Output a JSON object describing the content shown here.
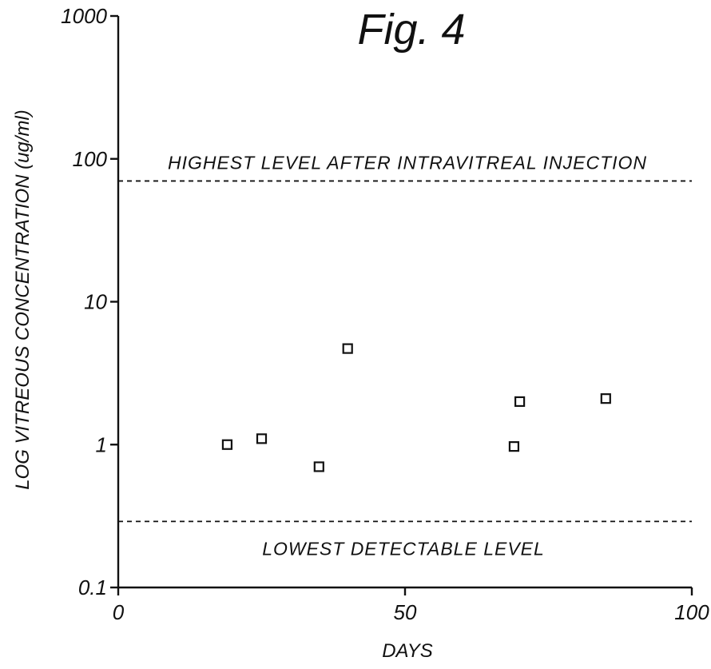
{
  "figure": {
    "title": "Fig. 4"
  },
  "chart_data": {
    "type": "scatter",
    "title": "Fig. 4",
    "xlabel": "DAYS",
    "ylabel": "LOG VITREOUS CONCENTRATION (ug/ml)",
    "xlim": [
      0,
      100
    ],
    "ylim": [
      0.1,
      1000
    ],
    "yscale": "log",
    "xticks": [
      "0",
      "50",
      "100"
    ],
    "xtick_values": [
      0,
      50,
      100
    ],
    "yticks": [
      "0.1",
      "1",
      "10",
      "100",
      "1000"
    ],
    "ytick_values": [
      0.1,
      1,
      10,
      100,
      1000
    ],
    "grid": false,
    "marker": "open-square",
    "points": [
      {
        "x": 19,
        "y": 1.0
      },
      {
        "x": 25,
        "y": 1.1
      },
      {
        "x": 35,
        "y": 0.7
      },
      {
        "x": 40,
        "y": 4.7
      },
      {
        "x": 69,
        "y": 0.97
      },
      {
        "x": 70,
        "y": 2.0
      },
      {
        "x": 85,
        "y": 2.1
      }
    ],
    "reference_lines": [
      {
        "y": 70,
        "label": "HIGHEST LEVEL AFTER INTRAVITREAL INJECTION",
        "style": "dashed"
      },
      {
        "y": 0.29,
        "label": "LOWEST DETECTABLE LEVEL",
        "style": "dashed"
      }
    ]
  }
}
